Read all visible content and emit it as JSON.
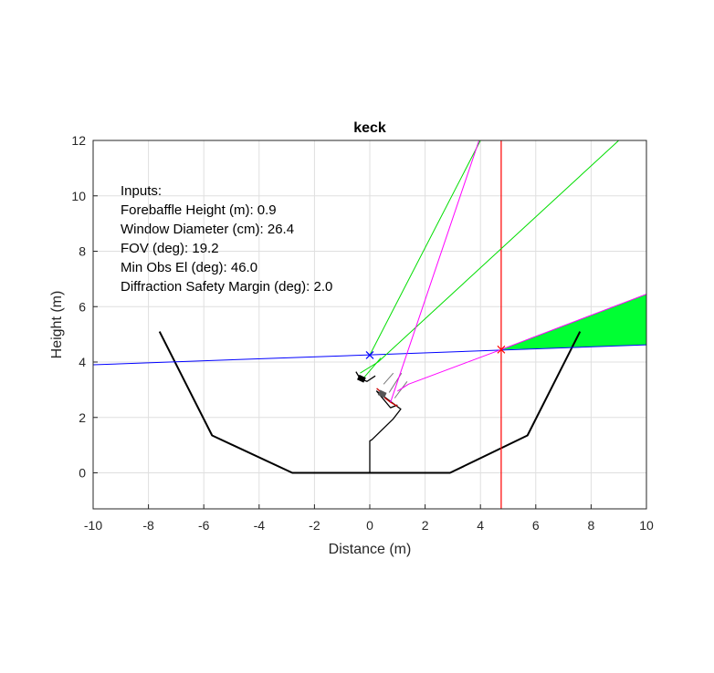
{
  "chart_data": {
    "type": "line",
    "title": "keck",
    "xlabel": "Distance (m)",
    "ylabel": "Height (m)",
    "xlim": [
      -10,
      10
    ],
    "ylim": [
      -1.3,
      12
    ],
    "xticks": [
      -10,
      -8,
      -6,
      -4,
      -2,
      0,
      2,
      4,
      6,
      8,
      10
    ],
    "xtick_labels": [
      "-10",
      "-8",
      "-6",
      "-4",
      "-2",
      "0",
      "2",
      "4",
      "6",
      "8",
      "10"
    ],
    "yticks": [
      0,
      2,
      4,
      6,
      8,
      10,
      12
    ],
    "ytick_labels": [
      "0",
      "2",
      "4",
      "6",
      "8",
      "10",
      "12"
    ],
    "grid": true,
    "annotations": {
      "header": "Inputs:",
      "lines": [
        "Forebaffle Height (m): 0.9",
        "Window Diameter (cm): 26.4",
        "FOV (deg): 19.2",
        "Min Obs El (deg): 46.0",
        "Diffraction Safety Margin (deg): 2.0"
      ]
    },
    "series": [
      {
        "name": "enclosure",
        "color": "#000000",
        "width": 2,
        "x": [
          -7.6,
          -5.7,
          -2.8,
          2.9,
          5.7,
          7.6
        ],
        "y": [
          5.1,
          1.35,
          0.0,
          0.0,
          1.35,
          5.1
        ]
      },
      {
        "name": "telescope-mount",
        "color": "#000000",
        "width": 1.3,
        "x": [
          0.0,
          0.0,
          0.08,
          0.85,
          1.12,
          0.25,
          0.75,
          1.0
        ],
        "y": [
          0.0,
          1.15,
          1.2,
          1.95,
          2.3,
          2.95,
          2.35,
          2.45
        ]
      },
      {
        "name": "optics-red",
        "color": "#cc0000",
        "width": 1.3,
        "x": [
          0.25,
          0.42,
          0.55,
          0.75,
          1.0
        ],
        "y": [
          3.05,
          2.9,
          2.7,
          2.55,
          2.4
        ]
      },
      {
        "name": "baffle-left",
        "color": "#000000",
        "width": 1.3,
        "x": [
          -0.5,
          -0.35,
          -0.1,
          0.2
        ],
        "y": [
          3.65,
          3.4,
          3.3,
          3.5
        ]
      },
      {
        "name": "diffraction-lines",
        "color": "#777777",
        "width": 1,
        "x": [
          0.5,
          0.85,
          null,
          0.7,
          1.15,
          null,
          0.9,
          1.35
        ],
        "y": [
          3.2,
          3.6,
          null,
          2.9,
          3.6,
          null,
          2.7,
          3.3
        ]
      },
      {
        "name": "horizon-blue",
        "color": "#0000ff",
        "width": 1,
        "x": [
          -10.0,
          10.0
        ],
        "y": [
          3.9,
          4.62
        ]
      },
      {
        "name": "vertical-red",
        "color": "#ff0000",
        "width": 1.2,
        "x": [
          4.75,
          4.75
        ],
        "y": [
          -1.3,
          12.0
        ]
      },
      {
        "name": "fov-green-1",
        "color": "#00dd00",
        "width": 1,
        "x": [
          0.0,
          4.0
        ],
        "y": [
          4.25,
          12.0
        ]
      },
      {
        "name": "fov-green-2",
        "color": "#00dd00",
        "width": 1,
        "x": [
          -0.35,
          0.3,
          9.0
        ],
        "y": [
          3.6,
          4.0,
          12.0
        ]
      },
      {
        "name": "fov-green-3",
        "color": "#00dd00",
        "width": 1,
        "x": [
          -0.2,
          0.4
        ],
        "y": [
          3.45,
          4.15
        ]
      },
      {
        "name": "rays-magenta-1",
        "color": "#ff00ff",
        "width": 1,
        "x": [
          0.75,
          3.95
        ],
        "y": [
          2.55,
          12.0
        ]
      },
      {
        "name": "rays-magenta-2",
        "color": "#ff00ff",
        "width": 1,
        "x": [
          1.0,
          1.4,
          4.75,
          10.0
        ],
        "y": [
          2.95,
          3.2,
          4.45,
          6.45
        ]
      }
    ],
    "wedge": {
      "name": "visible-sky-wedge",
      "color": "#00ff33",
      "x": [
        4.75,
        10.0,
        10.0
      ],
      "y": [
        4.45,
        6.45,
        4.62
      ]
    },
    "markers": [
      {
        "name": "window-center-marker",
        "color": "#0000ff",
        "x": 0.0,
        "y": 4.25
      },
      {
        "name": "baffle-intersection-marker",
        "color": "#ff0000",
        "x": 4.75,
        "y": 4.45
      },
      {
        "name": "secondary-block",
        "color": "#000000",
        "x": -0.3,
        "y": 3.4
      },
      {
        "name": "camera-block",
        "color": "#555555",
        "x": 0.45,
        "y": 2.85
      }
    ]
  }
}
